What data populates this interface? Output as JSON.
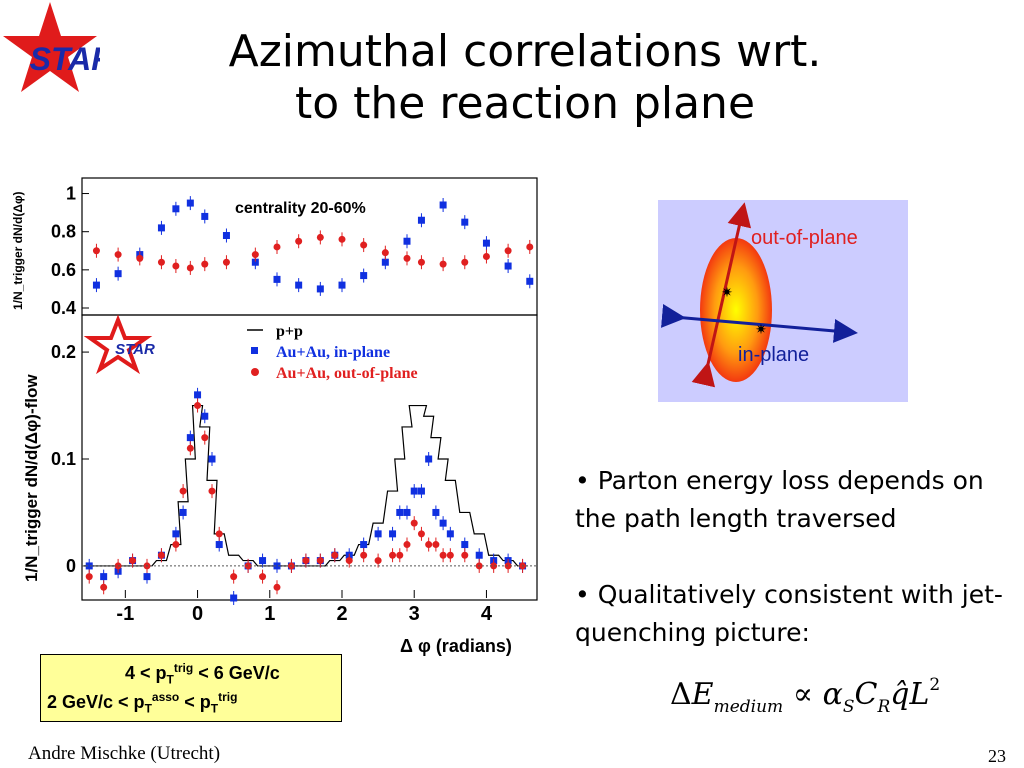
{
  "header": {
    "logo_text": "STAR",
    "title_line1": "Azimuthal correlations wrt.",
    "title_line2": "to the reaction plane"
  },
  "figure": {
    "top_panel_label": "centrality 20-60%",
    "top_ylabel": "1/N_trigger dN/d(Δφ)",
    "top_yticks": [
      "0.4",
      "0.6",
      "0.8",
      "1"
    ],
    "bottom_ylabel": "1/N_trigger dN/d(Δφ)-flow",
    "bottom_yticks": [
      "0",
      "0.1",
      "0.2"
    ],
    "xticks": [
      "-1",
      "0",
      "1",
      "2",
      "3",
      "4"
    ],
    "xlabel": "Δ φ (radians)",
    "inner_logo": "STAR",
    "legend": [
      "p+p",
      "Au+Au, in-plane",
      "Au+Au, out-of-plane"
    ],
    "colors": {
      "in_plane": "#1030e0",
      "out_of_plane": "#e02020",
      "pp": "#000000"
    }
  },
  "chart_data": [
    {
      "type": "scatter",
      "title": "centrality 20-60%",
      "ylabel": "1/N_trigger dN/d(Δφ)",
      "xlabel": "Δ φ (radians)",
      "xlim": [
        -1.6,
        4.7
      ],
      "ylim": [
        0.4,
        1.05
      ],
      "x": [
        -1.4,
        -1.1,
        -0.8,
        -0.5,
        -0.3,
        -0.1,
        0.1,
        0.4,
        0.8,
        1.1,
        1.4,
        1.7,
        2.0,
        2.3,
        2.6,
        2.9,
        3.1,
        3.4,
        3.7,
        4.0,
        4.3,
        4.6
      ],
      "series": [
        {
          "name": "Au+Au, in-plane",
          "values": [
            0.52,
            0.58,
            0.68,
            0.82,
            0.92,
            0.95,
            0.88,
            0.78,
            0.64,
            0.55,
            0.52,
            0.5,
            0.52,
            0.57,
            0.64,
            0.75,
            0.86,
            0.94,
            0.85,
            0.74,
            0.62,
            0.54
          ]
        },
        {
          "name": "Au+Au, out-of-plane",
          "values": [
            0.7,
            0.68,
            0.66,
            0.64,
            0.62,
            0.61,
            0.63,
            0.64,
            0.68,
            0.72,
            0.75,
            0.77,
            0.76,
            0.73,
            0.69,
            0.66,
            0.64,
            0.63,
            0.64,
            0.67,
            0.7,
            0.72
          ]
        }
      ]
    },
    {
      "type": "scatter",
      "ylabel": "1/N_trigger dN/d(Δφ)-flow",
      "xlabel": "Δ φ (radians)",
      "xlim": [
        -1.6,
        4.7
      ],
      "ylim": [
        -0.03,
        0.23
      ],
      "x": [
        -1.5,
        -1.3,
        -1.1,
        -0.9,
        -0.7,
        -0.5,
        -0.3,
        -0.2,
        -0.1,
        0.0,
        0.1,
        0.2,
        0.3,
        0.5,
        0.7,
        0.9,
        1.1,
        1.3,
        1.5,
        1.7,
        1.9,
        2.1,
        2.3,
        2.5,
        2.7,
        2.8,
        2.9,
        3.0,
        3.1,
        3.2,
        3.3,
        3.4,
        3.5,
        3.7,
        3.9,
        4.1,
        4.3,
        4.5
      ],
      "series": [
        {
          "name": "p+p",
          "values": [
            0.0,
            0.0,
            0.0,
            0.0,
            0.0,
            0.005,
            0.02,
            0.06,
            0.1,
            0.15,
            0.13,
            0.08,
            0.03,
            0.01,
            0.005,
            0.0,
            0.0,
            0.0,
            0.0,
            0.0,
            0.005,
            0.01,
            0.02,
            0.04,
            0.07,
            0.1,
            0.13,
            0.15,
            0.15,
            0.14,
            0.12,
            0.1,
            0.08,
            0.05,
            0.03,
            0.01,
            0.005,
            0.0
          ]
        },
        {
          "name": "Au+Au, in-plane",
          "values": [
            0.0,
            -0.01,
            -0.005,
            0.005,
            -0.01,
            0.01,
            0.03,
            0.05,
            0.12,
            0.16,
            0.14,
            0.1,
            0.02,
            -0.03,
            0.0,
            0.005,
            0.0,
            0.0,
            0.005,
            0.005,
            0.01,
            0.01,
            0.02,
            0.03,
            0.03,
            0.05,
            0.05,
            0.07,
            0.07,
            0.1,
            0.05,
            0.04,
            0.03,
            0.02,
            0.01,
            0.005,
            0.005,
            0.0
          ]
        },
        {
          "name": "Au+Au, out-of-plane",
          "values": [
            -0.01,
            -0.02,
            0.0,
            0.005,
            0.0,
            0.01,
            0.02,
            0.07,
            0.11,
            0.15,
            0.12,
            0.07,
            0.03,
            -0.01,
            0.0,
            -0.01,
            -0.02,
            0.0,
            0.005,
            0.005,
            0.01,
            0.005,
            0.01,
            0.005,
            0.01,
            0.01,
            0.02,
            0.04,
            0.03,
            0.02,
            0.02,
            0.01,
            0.01,
            0.01,
            0.0,
            0.0,
            0.0,
            0.0
          ]
        }
      ]
    }
  ],
  "schematic": {
    "out_of_plane_label": "out-of-plane",
    "in_plane_label": "in-plane"
  },
  "kinematics": {
    "line1_pre": "4 < p",
    "line1_sub": "T",
    "line1_sup": "trig",
    "line1_post": " < 6 GeV/c",
    "line2_pre": "2 GeV/c < p",
    "line2_sub": "T",
    "line2_sup": "asso",
    "line2_mid": " < p",
    "line2_sub2": "T",
    "line2_sup2": "trig"
  },
  "bullets": [
    "• Parton energy loss depends on the path length traversed",
    "• Qualitatively consistent with jet-quenching picture:"
  ],
  "formula": {
    "delta": "Δ",
    "E": "E",
    "E_sub": "medium",
    "prop": "∝",
    "alpha": "α",
    "alpha_sub": "S",
    "C": "C",
    "C_sub": "R",
    "q": "q̂",
    "L": "L",
    "L_sup": "2"
  },
  "footer": {
    "author": "Andre Mischke (Utrecht)",
    "page": "23"
  }
}
